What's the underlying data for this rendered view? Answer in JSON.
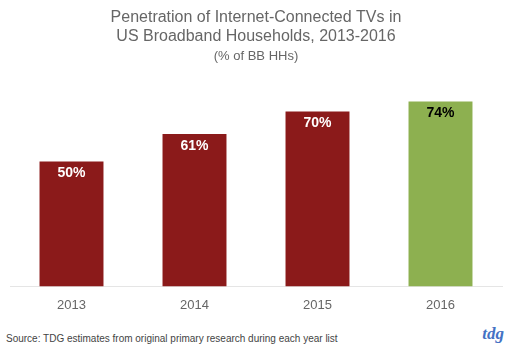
{
  "chart_data": {
    "type": "bar",
    "title": [
      "Penetration of Internet-Connected TVs in",
      "US Broadband Households, 2013-2016"
    ],
    "subtitle": "(% of BB HHs)",
    "categories": [
      "2013",
      "2014",
      "2015",
      "2016"
    ],
    "values": [
      50,
      61,
      70,
      74
    ],
    "value_labels": [
      "50%",
      "61%",
      "70%",
      "74%"
    ],
    "colors": [
      "#8B1A1A",
      "#8B1A1A",
      "#8B1A1A",
      "#8DB050"
    ],
    "ylim": [
      0,
      85
    ],
    "grid": false,
    "legend": "none",
    "data_labels": true,
    "tick_labels": "x",
    "annotations": [
      "Source: TDG estimates from original primary research during each year list",
      "tdg"
    ]
  }
}
